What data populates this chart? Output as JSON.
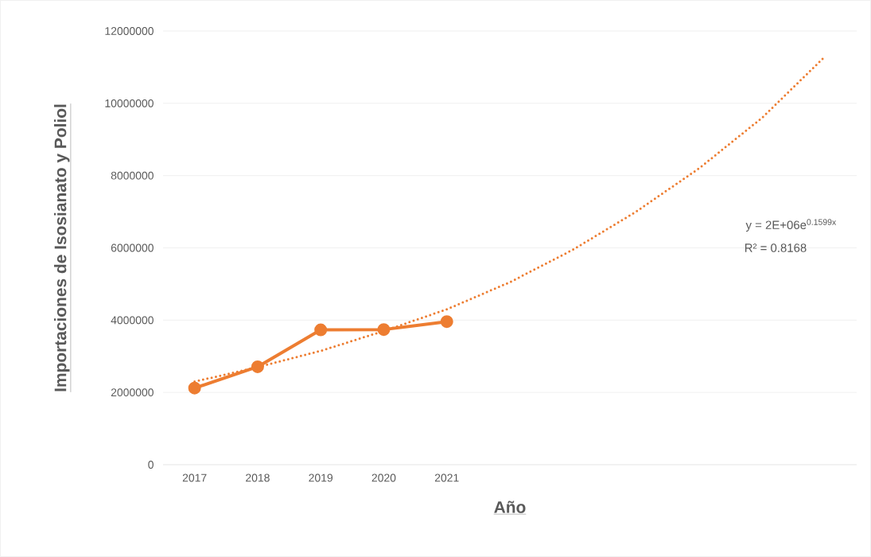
{
  "chart_data": {
    "type": "line",
    "xlabel": "Año",
    "ylabel": "Importaciones de Isosianato y Poliol",
    "categories": [
      "2017",
      "2018",
      "2019",
      "2020",
      "2021",
      null,
      null,
      null,
      null,
      null,
      null
    ],
    "series": [
      {
        "color": "#ed7d31",
        "marker": "circle",
        "line_style": "solid",
        "values": [
          2120000,
          2710000,
          3730000,
          3740000,
          3960000,
          null,
          null,
          null,
          null,
          null,
          null
        ]
      },
      {
        "color": "#ed7d31",
        "marker": "none",
        "line_style": "dotted",
        "values": [
          2300000,
          2700000,
          3150000,
          3700000,
          4300000,
          5050000,
          5950000,
          7000000,
          8200000,
          9600000,
          11300000
        ]
      }
    ],
    "ylim": [
      0,
      12000000
    ],
    "yticks": [
      0,
      2000000,
      4000000,
      6000000,
      8000000,
      10000000,
      12000000
    ],
    "grid": "y",
    "legend": false,
    "annotations": [
      "y = 2E+06e$^{0.1599x}$",
      "R² = 0.8168"
    ]
  }
}
